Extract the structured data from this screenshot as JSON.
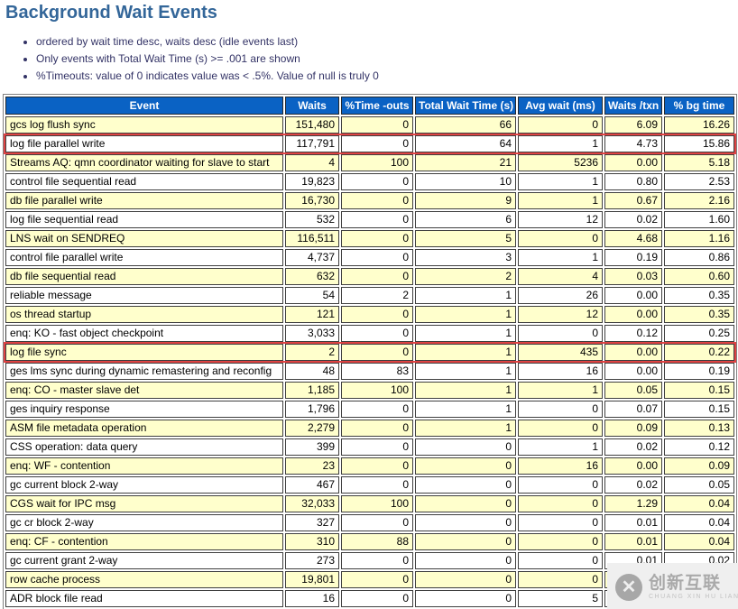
{
  "title": "Background Wait Events",
  "notes": [
    "ordered by wait time desc, waits desc (idle events last)",
    "Only events with Total Wait Time (s) >= .001 are shown",
    "%Timeouts: value of 0 indicates value was < .5%. Value of null is truly 0"
  ],
  "colors": {
    "title": "#336699",
    "header_bg": "#0a62c4",
    "header_text": "#ffffff",
    "alt_row_bg": "#ffffcc",
    "highlight_outline": "#e04343",
    "notes_text": "#333366"
  },
  "table": {
    "columns": [
      "Event",
      "Waits",
      "%Time -outs",
      "Total Wait Time (s)",
      "Avg wait (ms)",
      "Waits /txn",
      "% bg time"
    ],
    "rows": [
      {
        "cells": [
          "gcs log flush sync",
          "151,480",
          "0",
          "66",
          "0",
          "6.09",
          "16.26"
        ],
        "highlight": false
      },
      {
        "cells": [
          "log file parallel write",
          "117,791",
          "0",
          "64",
          "1",
          "4.73",
          "15.86"
        ],
        "highlight": true
      },
      {
        "cells": [
          "Streams AQ: qmn coordinator waiting for slave to start",
          "4",
          "100",
          "21",
          "5236",
          "0.00",
          "5.18"
        ],
        "highlight": false
      },
      {
        "cells": [
          "control file sequential read",
          "19,823",
          "0",
          "10",
          "1",
          "0.80",
          "2.53"
        ],
        "highlight": false
      },
      {
        "cells": [
          "db file parallel write",
          "16,730",
          "0",
          "9",
          "1",
          "0.67",
          "2.16"
        ],
        "highlight": false
      },
      {
        "cells": [
          "log file sequential read",
          "532",
          "0",
          "6",
          "12",
          "0.02",
          "1.60"
        ],
        "highlight": false
      },
      {
        "cells": [
          "LNS wait on SENDREQ",
          "116,511",
          "0",
          "5",
          "0",
          "4.68",
          "1.16"
        ],
        "highlight": false
      },
      {
        "cells": [
          "control file parallel write",
          "4,737",
          "0",
          "3",
          "1",
          "0.19",
          "0.86"
        ],
        "highlight": false
      },
      {
        "cells": [
          "db file sequential read",
          "632",
          "0",
          "2",
          "4",
          "0.03",
          "0.60"
        ],
        "highlight": false
      },
      {
        "cells": [
          "reliable message",
          "54",
          "2",
          "1",
          "26",
          "0.00",
          "0.35"
        ],
        "highlight": false
      },
      {
        "cells": [
          "os thread startup",
          "121",
          "0",
          "1",
          "12",
          "0.00",
          "0.35"
        ],
        "highlight": false
      },
      {
        "cells": [
          "enq: KO - fast object checkpoint",
          "3,033",
          "0",
          "1",
          "0",
          "0.12",
          "0.25"
        ],
        "highlight": false
      },
      {
        "cells": [
          "log file sync",
          "2",
          "0",
          "1",
          "435",
          "0.00",
          "0.22"
        ],
        "highlight": true
      },
      {
        "cells": [
          "ges lms sync during dynamic remastering and reconfig",
          "48",
          "83",
          "1",
          "16",
          "0.00",
          "0.19"
        ],
        "highlight": false
      },
      {
        "cells": [
          "enq: CO - master slave det",
          "1,185",
          "100",
          "1",
          "1",
          "0.05",
          "0.15"
        ],
        "highlight": false
      },
      {
        "cells": [
          "ges inquiry response",
          "1,796",
          "0",
          "1",
          "0",
          "0.07",
          "0.15"
        ],
        "highlight": false
      },
      {
        "cells": [
          "ASM file metadata operation",
          "2,279",
          "0",
          "1",
          "0",
          "0.09",
          "0.13"
        ],
        "highlight": false
      },
      {
        "cells": [
          "CSS operation: data query",
          "399",
          "0",
          "0",
          "1",
          "0.02",
          "0.12"
        ],
        "highlight": false
      },
      {
        "cells": [
          "enq: WF - contention",
          "23",
          "0",
          "0",
          "16",
          "0.00",
          "0.09"
        ],
        "highlight": false
      },
      {
        "cells": [
          "gc current block 2-way",
          "467",
          "0",
          "0",
          "0",
          "0.02",
          "0.05"
        ],
        "highlight": false
      },
      {
        "cells": [
          "CGS wait for IPC msg",
          "32,033",
          "100",
          "0",
          "0",
          "1.29",
          "0.04"
        ],
        "highlight": false
      },
      {
        "cells": [
          "gc cr block 2-way",
          "327",
          "0",
          "0",
          "0",
          "0.01",
          "0.04"
        ],
        "highlight": false
      },
      {
        "cells": [
          "enq: CF - contention",
          "310",
          "88",
          "0",
          "0",
          "0.01",
          "0.04"
        ],
        "highlight": false
      },
      {
        "cells": [
          "gc current grant 2-way",
          "273",
          "0",
          "0",
          "0",
          "0.01",
          "0.02"
        ],
        "highlight": false
      },
      {
        "cells": [
          "row cache process",
          "19,801",
          "0",
          "0",
          "0",
          "",
          ""
        ],
        "highlight": false
      },
      {
        "cells": [
          "ADR block file read",
          "16",
          "0",
          "0",
          "5",
          "",
          ""
        ],
        "highlight": false
      },
      {
        "cells": [
          "",
          "",
          "",
          "",
          "",
          "",
          ""
        ],
        "highlight": false
      }
    ]
  },
  "watermark": {
    "logo_glyph": "✕",
    "text": "创新互联",
    "subtext": "CHUANG XIN HU LIAN"
  }
}
